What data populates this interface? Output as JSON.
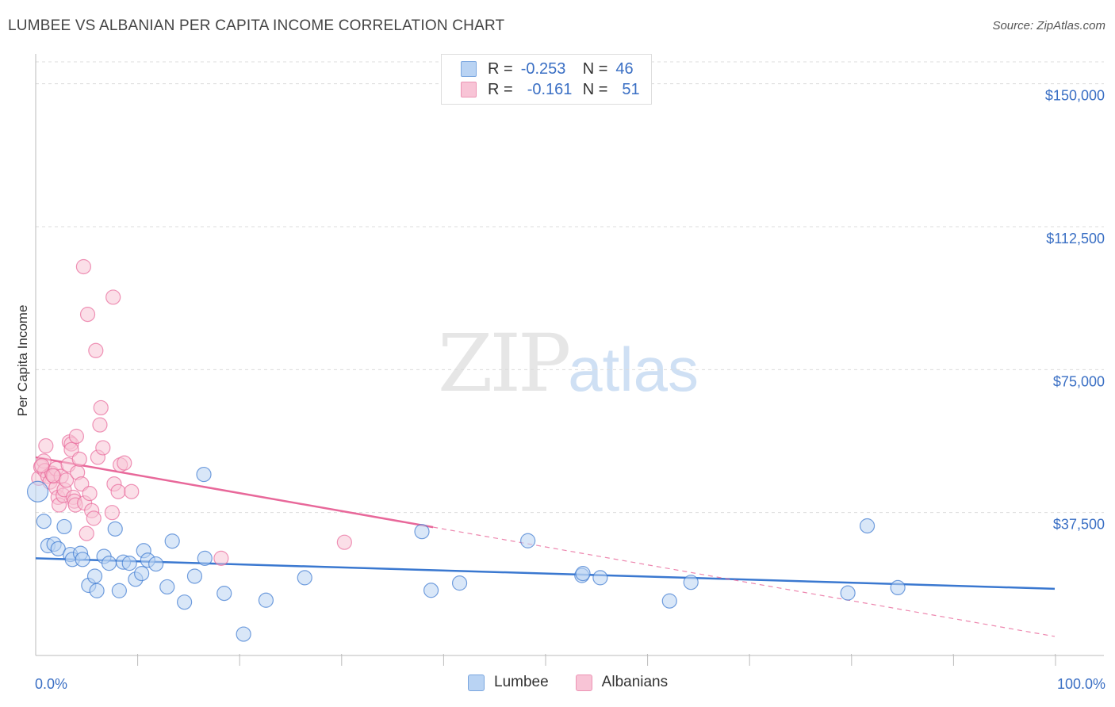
{
  "title": "LUMBEE VS ALBANIAN PER CAPITA INCOME CORRELATION CHART",
  "source": "Source: ZipAtlas.com",
  "watermark": {
    "zip": "ZIP",
    "atlas": "atlas"
  },
  "colors": {
    "lumbee": "#3a78d0",
    "lumbee_fill": "#b9d3f3",
    "albanian": "#e8689a",
    "albanian_fill": "#f8c4d6",
    "axis_label": "#3a6fc4"
  },
  "legend": {
    "rows": [
      {
        "r_label": "R =",
        "r_value": "-0.253",
        "n_label": "N =",
        "n_value": "46"
      },
      {
        "r_label": "R =",
        "r_value": "-0.161",
        "n_label": "N =",
        "n_value": "51"
      }
    ]
  },
  "bottom_legend": {
    "lumbee": "Lumbee",
    "albanians": "Albanians"
  },
  "chart_data": {
    "type": "scatter",
    "title": "LUMBEE VS ALBANIAN PER CAPITA INCOME CORRELATION CHART",
    "xlabel": "",
    "ylabel": "Per Capita Income",
    "xlim": [
      0,
      100
    ],
    "ylim": [
      0,
      157000
    ],
    "x_tick_labels": [
      "0.0%",
      "100.0%"
    ],
    "y_ticks": [
      37500,
      75000,
      112500,
      150000
    ],
    "y_tick_labels": [
      "$37,500",
      "$75,000",
      "$112,500",
      "$150,000"
    ],
    "series": [
      {
        "name": "Lumbee",
        "r": -0.253,
        "n": 46,
        "trend": {
          "x": [
            0,
            100
          ],
          "y": [
            25500,
            17500
          ],
          "dashed_from": null
        },
        "points": [
          [
            0.2,
            43000
          ],
          [
            0.8,
            35200
          ],
          [
            1.2,
            28800
          ],
          [
            1.8,
            29200
          ],
          [
            2.2,
            28000
          ],
          [
            2.8,
            33800
          ],
          [
            3.4,
            26500
          ],
          [
            3.6,
            25200
          ],
          [
            4.4,
            26800
          ],
          [
            4.6,
            25200
          ],
          [
            5.2,
            18400
          ],
          [
            5.8,
            20800
          ],
          [
            6.0,
            17000
          ],
          [
            6.7,
            26000
          ],
          [
            7.2,
            24200
          ],
          [
            7.8,
            33200
          ],
          [
            8.2,
            17000
          ],
          [
            8.6,
            24500
          ],
          [
            9.2,
            24200
          ],
          [
            9.8,
            20000
          ],
          [
            10.4,
            21500
          ],
          [
            10.6,
            27500
          ],
          [
            11.0,
            25000
          ],
          [
            11.8,
            24000
          ],
          [
            12.9,
            18000
          ],
          [
            13.4,
            30000
          ],
          [
            14.6,
            14000
          ],
          [
            15.6,
            20800
          ],
          [
            16.5,
            47500
          ],
          [
            16.6,
            25500
          ],
          [
            18.5,
            16300
          ],
          [
            20.4,
            5600
          ],
          [
            22.6,
            14500
          ],
          [
            26.4,
            20400
          ],
          [
            37.9,
            32500
          ],
          [
            38.8,
            17100
          ],
          [
            41.6,
            19000
          ],
          [
            48.3,
            30100
          ],
          [
            53.6,
            21000
          ],
          [
            53.7,
            21500
          ],
          [
            55.4,
            20400
          ],
          [
            62.2,
            14300
          ],
          [
            64.3,
            19200
          ],
          [
            79.7,
            16400
          ],
          [
            81.6,
            34000
          ],
          [
            84.6,
            17800
          ]
        ]
      },
      {
        "name": "Albanians",
        "r": -0.161,
        "n": 51,
        "trend": {
          "x": [
            0,
            100
          ],
          "y": [
            52000,
            5000
          ],
          "dashed_from": 39
        },
        "points": [
          [
            0.3,
            46500
          ],
          [
            0.5,
            49500
          ],
          [
            0.8,
            51000
          ],
          [
            0.9,
            48500
          ],
          [
            1.0,
            55000
          ],
          [
            1.2,
            47000
          ],
          [
            1.4,
            45500
          ],
          [
            1.6,
            47800
          ],
          [
            1.8,
            47000
          ],
          [
            2.0,
            44000
          ],
          [
            2.0,
            49000
          ],
          [
            2.2,
            41500
          ],
          [
            2.3,
            39500
          ],
          [
            2.5,
            47000
          ],
          [
            2.7,
            42000
          ],
          [
            2.8,
            43500
          ],
          [
            3.0,
            46000
          ],
          [
            3.2,
            50000
          ],
          [
            3.3,
            56000
          ],
          [
            3.5,
            55500
          ],
          [
            3.5,
            54000
          ],
          [
            3.7,
            41500
          ],
          [
            3.8,
            40500
          ],
          [
            3.9,
            39500
          ],
          [
            4.0,
            57500
          ],
          [
            4.1,
            48000
          ],
          [
            4.3,
            51500
          ],
          [
            4.5,
            45000
          ],
          [
            4.7,
            102000
          ],
          [
            4.8,
            40000
          ],
          [
            5.0,
            32000
          ],
          [
            5.1,
            89500
          ],
          [
            5.3,
            42500
          ],
          [
            5.5,
            38000
          ],
          [
            5.7,
            36000
          ],
          [
            5.9,
            80000
          ],
          [
            6.1,
            52000
          ],
          [
            6.3,
            60500
          ],
          [
            6.4,
            65000
          ],
          [
            6.6,
            54500
          ],
          [
            7.5,
            37500
          ],
          [
            7.6,
            94000
          ],
          [
            7.7,
            45000
          ],
          [
            8.1,
            43000
          ],
          [
            8.3,
            50000
          ],
          [
            8.7,
            50500
          ],
          [
            9.4,
            43000
          ],
          [
            18.2,
            25500
          ],
          [
            30.3,
            29700
          ],
          [
            1.7,
            47200
          ],
          [
            0.6,
            49800
          ]
        ]
      }
    ]
  }
}
